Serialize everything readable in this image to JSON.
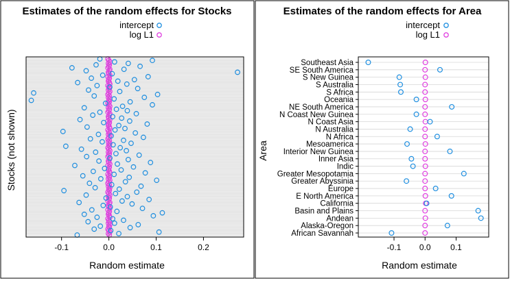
{
  "colors": {
    "intercept": "#1f8fe0",
    "log_l1": "#e040e0",
    "panel_bg_left": "#efefef",
    "grid": "#d6d6d6",
    "frame": "#000000"
  },
  "chart_data": [
    {
      "type": "scatter",
      "title": "Estimates of the random effects for Stocks",
      "xlabel": "Random estimate",
      "ylabel": "Stocks (not shown)",
      "xlim": [
        -0.175,
        0.285
      ],
      "xticks": [
        -0.1,
        0.0,
        0.1,
        0.2
      ],
      "xtick_labels": [
        "-0.1",
        "0.0",
        "0.1",
        "0.2"
      ],
      "legend": [
        {
          "label": "intercept",
          "color": "#1f8fe0"
        },
        {
          "label": "log L1",
          "color": "#e040e0"
        }
      ],
      "legend_position": "top",
      "n_rows": 120,
      "series": [
        {
          "name": "intercept",
          "values": [
            -0.067,
            0.021,
            0.106,
            0.004,
            -0.031,
            0.045,
            -0.018,
            0.062,
            0.012,
            -0.044,
            0.031,
            0.008,
            -0.025,
            0.094,
            -0.052,
            0.113,
            0.017,
            -0.036,
            0.071,
            0.003,
            -0.012,
            0.049,
            -0.063,
            0.028,
            0.085,
            -0.006,
            0.039,
            -0.048,
            0.014,
            0.059,
            -0.095,
            0.022,
            -0.029,
            0.068,
            0.006,
            -0.041,
            0.035,
            0.101,
            -0.017,
            0.043,
            -0.055,
            0.011,
            0.077,
            -0.033,
            0.026,
            -0.009,
            0.052,
            -0.072,
            0.018,
            0.088,
            -0.021,
            0.041,
            0.002,
            -0.047,
            0.064,
            0.015,
            -0.028,
            0.037,
            -0.058,
            0.024,
            -0.091,
            0.009,
            0.047,
            -0.014,
            0.031,
            -0.039,
            0.073,
            0.005,
            -0.022,
            0.056,
            -0.097,
            0.013,
            0.034,
            -0.046,
            0.021,
            0.081,
            -0.011,
            0.044,
            -0.061,
            0.027,
            0.008,
            -0.034,
            0.058,
            -0.019,
            0.039,
            0.016,
            -0.052,
            0.029,
            0.092,
            -0.007,
            0.045,
            -0.164,
            0.011,
            0.075,
            -0.031,
            0.103,
            -0.159,
            0.023,
            -0.043,
            0.061,
            0.002,
            -0.025,
            0.038,
            -0.066,
            0.019,
            0.054,
            -0.037,
            0.083,
            -0.013,
            0.007,
            0.272,
            -0.048,
            0.032,
            -0.078,
            0.066,
            -0.027,
            0.041,
            0.012,
            0.092,
            -0.019
          ]
        },
        {
          "name": "log L1",
          "values": [
            0.001,
            -0.001,
            0.002,
            0.0,
            -0.002,
            0.001,
            0.0,
            0.002,
            -0.001,
            0.001,
            0.0,
            -0.002,
            0.002,
            0.001,
            -0.001,
            0.0,
            0.001,
            -0.002,
            0.002,
            0.0,
            -0.001,
            0.001,
            0.002,
            -0.002,
            0.0,
            0.001,
            -0.001,
            0.002,
            0.0,
            -0.002,
            0.001,
            0.0,
            0.002,
            -0.001,
            0.001,
            -0.002,
            0.0,
            0.002,
            -0.001,
            0.001,
            0.0,
            -0.002,
            0.002,
            0.001,
            -0.001,
            0.0,
            0.001,
            -0.002,
            0.002,
            0.0,
            -0.001,
            0.001,
            0.002,
            -0.002,
            0.0,
            0.001,
            -0.001,
            0.002,
            0.0,
            -0.002,
            0.001,
            0.0,
            0.002,
            -0.001,
            0.001,
            -0.002,
            0.0,
            0.002,
            -0.001,
            0.001,
            0.0,
            -0.002,
            0.002,
            0.001,
            -0.001,
            0.0,
            0.001,
            -0.002,
            0.002,
            0.0,
            -0.001,
            0.001,
            0.002,
            -0.002,
            0.0,
            0.001,
            -0.001,
            0.002,
            0.0,
            -0.002,
            0.001,
            0.0,
            0.002,
            -0.001,
            0.001,
            -0.002,
            0.0,
            0.002,
            -0.001,
            0.001,
            0.0,
            -0.002,
            0.002,
            0.001,
            -0.001,
            0.0,
            0.001,
            -0.002,
            0.002,
            0.0,
            -0.001,
            0.001,
            0.002,
            -0.002,
            0.0,
            0.001,
            -0.001,
            0.002,
            0.0,
            -0.002
          ]
        }
      ]
    },
    {
      "type": "scatter",
      "title": "Estimates of the random effects for Area",
      "xlabel": "Random estimate",
      "ylabel": "Area",
      "xlim": [
        -0.215,
        0.205
      ],
      "xticks": [
        -0.1,
        0.0,
        0.1
      ],
      "xtick_labels": [
        "-0.1",
        "0.0",
        "0.1"
      ],
      "legend": [
        {
          "label": "intercept",
          "color": "#1f8fe0"
        },
        {
          "label": "log L1",
          "color": "#e040e0"
        }
      ],
      "legend_position": "top",
      "categories": [
        "Southeast Asia",
        "SE South America",
        "S New Guinea",
        "S Australia",
        "S Africa",
        "Oceania",
        "NE South America",
        "N Coast New Guinea",
        "N Coast Asia",
        "N Australia",
        "N Africa",
        "Mesoamerica",
        "Interior New Guinea",
        "Inner Asia",
        "Indic",
        "Greater Mesopotamia",
        "Greater Abyssinia",
        "Europe",
        "E North America",
        "California",
        "Basin and Plains",
        "Andean",
        "Alaska-Oregon",
        "African Savannah"
      ],
      "series": [
        {
          "name": "intercept",
          "values": [
            -0.183,
            0.048,
            -0.083,
            -0.08,
            -0.078,
            -0.028,
            0.086,
            -0.028,
            0.016,
            -0.048,
            0.039,
            -0.058,
            0.08,
            -0.044,
            -0.039,
            0.125,
            -0.06,
            0.034,
            0.085,
            0.005,
            0.171,
            0.18,
            0.072,
            -0.108
          ]
        },
        {
          "name": "log L1",
          "values": [
            0.001,
            0.0,
            0.001,
            0.0,
            0.0,
            0.001,
            0.0,
            0.0,
            0.001,
            0.0,
            0.0,
            0.001,
            0.0,
            0.0,
            0.001,
            0.0,
            0.0,
            0.0,
            0.001,
            0.002,
            0.0,
            0.001,
            0.0,
            0.0
          ]
        }
      ]
    }
  ]
}
